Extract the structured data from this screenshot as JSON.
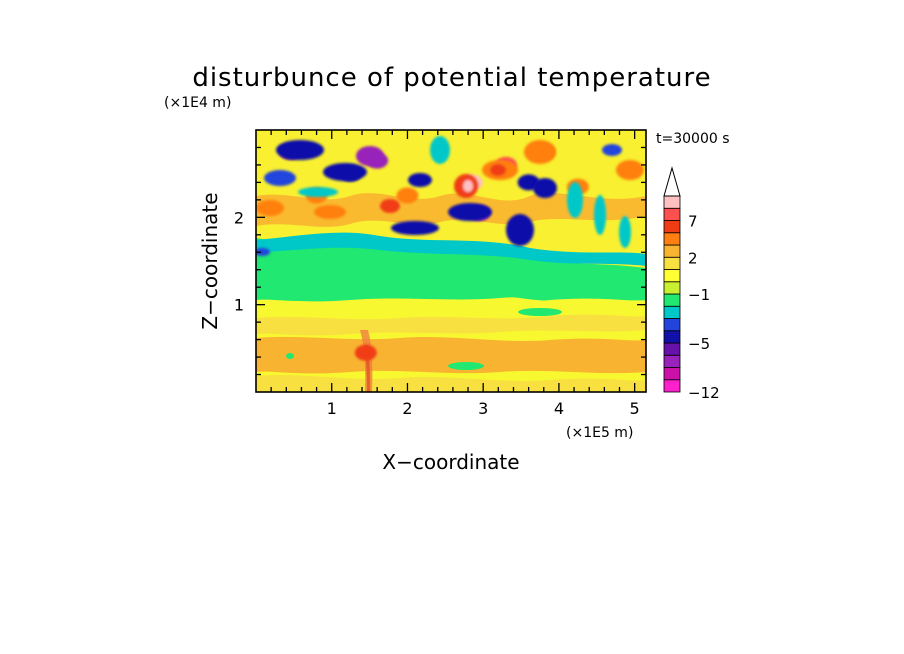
{
  "chart_data": {
    "type": "heatmap",
    "title": "disturbunce of potential temperature",
    "xlabel": "X−coordinate",
    "ylabel": "Z−coordinate",
    "x_unit": "(×1E5 m)",
    "y_unit": "(×1E4 m)",
    "time_label": "t=30000 s",
    "xlim": [
      0,
      5.15
    ],
    "ylim": [
      0,
      3.0
    ],
    "xticks": [
      "1",
      "2",
      "3",
      "4",
      "5"
    ],
    "yticks": [
      "1",
      "2"
    ],
    "colorbar": {
      "levels": [
        -12,
        -10,
        -8,
        -6,
        -5,
        -4,
        -3,
        -2,
        -1,
        0,
        1,
        2,
        3,
        5,
        7,
        9,
        11
      ],
      "colors": [
        "#ff22cc",
        "#cc11aa",
        "#9922bb",
        "#6611aa",
        "#1111aa",
        "#2244dd",
        "#00c8c8",
        "#20e870",
        "#c8f030",
        "#ffff33",
        "#f8e040",
        "#f8b430",
        "#ff8010",
        "#f03c14",
        "#ff5050",
        "#ffc0c0"
      ],
      "over_color": "#ffffff",
      "tick_labels": [
        {
          "value": 7,
          "label": "7"
        },
        {
          "value": 2,
          "label": "2"
        },
        {
          "value": -1,
          "label": "−1"
        },
        {
          "value": -5,
          "label": "−5"
        },
        {
          "value": -12,
          "label": "−12"
        }
      ]
    },
    "features": [
      {
        "x": 0.45,
        "z": 2.75,
        "value": -5.5
      },
      {
        "x": 1.6,
        "z": 2.65,
        "value": -7
      },
      {
        "x": 1.25,
        "z": 2.5,
        "value": -5
      },
      {
        "x": 2.85,
        "z": 2.4,
        "value": 9
      },
      {
        "x": 3.3,
        "z": 2.6,
        "value": 7
      },
      {
        "x": 2.95,
        "z": 2.05,
        "value": -7
      },
      {
        "x": 3.6,
        "z": 2.4,
        "value": -5
      },
      {
        "x": 3.8,
        "z": 2.75,
        "value": 5
      },
      {
        "x": 4.25,
        "z": 2.35,
        "value": 4
      },
      {
        "x": 0.8,
        "z": 2.25,
        "value": 3
      },
      {
        "x": 2.0,
        "z": 2.25,
        "value": 3
      },
      {
        "x": 1.45,
        "z": 0.45,
        "value": 5
      }
    ]
  }
}
